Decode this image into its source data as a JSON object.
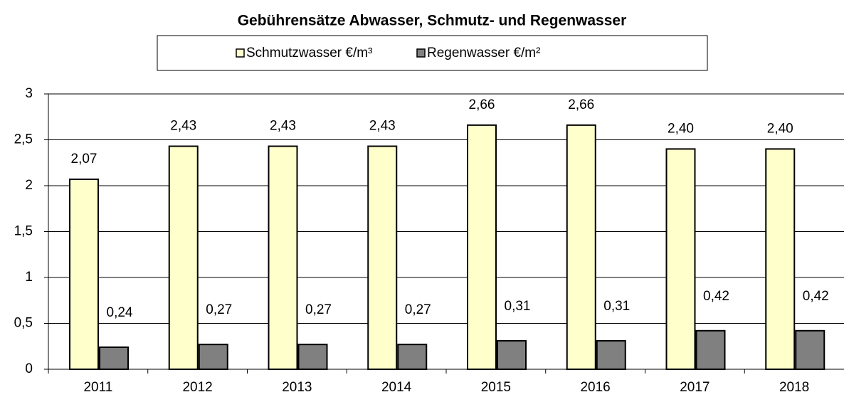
{
  "chart_data": {
    "type": "bar",
    "title": "Gebührensätze Abwasser, Schmutz- und Regenwasser",
    "categories": [
      "2011",
      "2012",
      "2013",
      "2014",
      "2015",
      "2016",
      "2017",
      "2018"
    ],
    "series": [
      {
        "name": "Schmutzwasser €/m³",
        "color": "#ffffcc",
        "values": [
          2.07,
          2.43,
          2.43,
          2.43,
          2.66,
          2.66,
          2.4,
          2.4
        ],
        "value_labels": [
          "2,07",
          "2,43",
          "2,43",
          "2,43",
          "2,66",
          "2,66",
          "2,40",
          "2,40"
        ]
      },
      {
        "name": "Regenwasser €/m²",
        "color": "#808080",
        "values": [
          0.24,
          0.27,
          0.27,
          0.27,
          0.31,
          0.31,
          0.42,
          0.42
        ],
        "value_labels": [
          "0,24",
          "0,27",
          "0,27",
          "0,27",
          "0,31",
          "0,31",
          "0,42",
          "0,42"
        ]
      }
    ],
    "ylim": [
      0,
      3
    ],
    "yticks": [
      0,
      {
        "value": 0.5,
        "label": "0,5"
      },
      1,
      {
        "value": 1.5,
        "label": "1,5"
      },
      2,
      {
        "value": 2.5,
        "label": "2,5"
      },
      3
    ],
    "grid": true
  }
}
